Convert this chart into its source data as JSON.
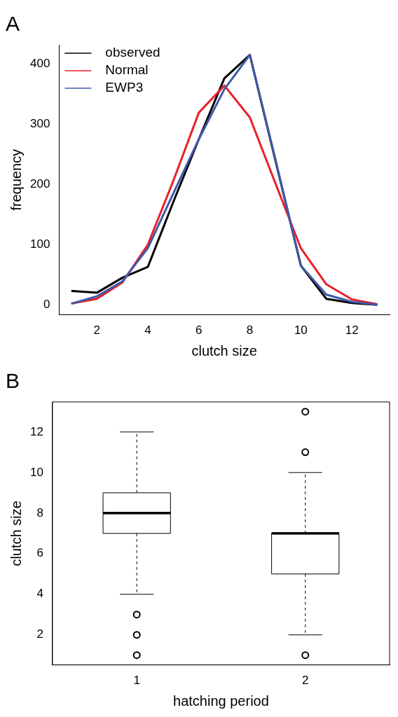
{
  "chart_data": [
    {
      "type": "line",
      "title": "A",
      "xlabel": "clutch size",
      "ylabel": "frequency",
      "x": [
        1,
        2,
        3,
        4,
        5,
        6,
        7,
        8,
        9,
        10,
        11,
        12,
        13
      ],
      "xlim": [
        0.52,
        13.48
      ],
      "xticks": [
        2,
        4,
        6,
        8,
        10,
        12
      ],
      "ylim": [
        -16.6,
        431.6
      ],
      "yticks": [
        0,
        100,
        200,
        300,
        400
      ],
      "grid": false,
      "legend": "top left",
      "line_style": "solid",
      "marker": "none",
      "series": [
        {
          "name": "observed",
          "color": "#000000",
          "values": [
            23,
            20,
            45,
            63,
            171,
            275,
            376,
            415,
            240,
            65,
            10,
            3,
            0
          ]
        },
        {
          "name": "Normal",
          "color": "#e8202a",
          "values": [
            2,
            10,
            37,
            100,
            206,
            319,
            364,
            311,
            202,
            94,
            34,
            9,
            1
          ]
        },
        {
          "name": "EWP3",
          "color": "#3f5aa8",
          "values": [
            2,
            14,
            39,
            94,
            185,
            275,
            358,
            415,
            242,
            65,
            17,
            5,
            0
          ]
        }
      ]
    },
    {
      "type": "box",
      "title": "B",
      "xlabel": "hatching period",
      "ylabel": "clutch size",
      "categories": [
        "1",
        "2"
      ],
      "ylim": [
        0.52,
        13.48
      ],
      "yticks": [
        2,
        4,
        6,
        8,
        10,
        12
      ],
      "grid": false,
      "boxes": [
        {
          "low": 4,
          "q1": 7,
          "median": 8,
          "q3": 9,
          "high": 12,
          "outliers": [
            1,
            2,
            3
          ]
        },
        {
          "low": 2,
          "q1": 5,
          "median": 7,
          "q3": 7,
          "high": 10,
          "outliers": [
            1,
            11,
            13
          ]
        }
      ]
    }
  ]
}
